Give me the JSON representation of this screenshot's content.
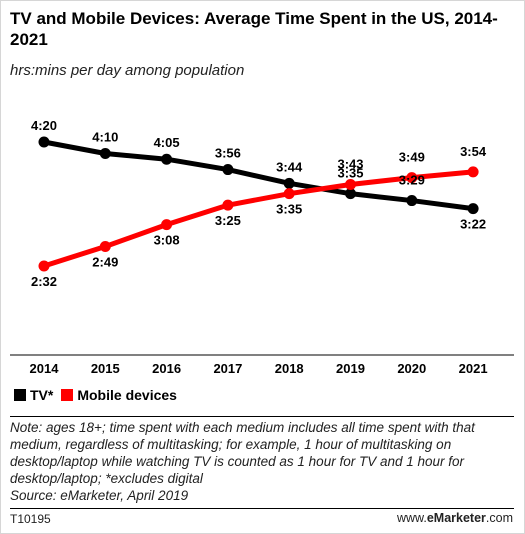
{
  "title": "TV and Mobile Devices: Average Time Spent in the US, 2014-2021",
  "subtitle": "hrs:mins per day among population",
  "note": "Note: ages 18+; time spent with each medium includes all time spent with that medium, regardless of multitasking; for example, 1 hour of multitasking on desktop/laptop while watching TV is counted as 1 hour for TV and 1 hour for desktop/laptop; *excludes digital",
  "source": "Source: eMarketer, April 2019",
  "chart_code": "T10195",
  "site": {
    "prefix": "www.",
    "brand": "eMarketer",
    "suffix": ".com"
  },
  "colors": {
    "tv": "#000000",
    "mobile": "#ff0000"
  },
  "chart_data": {
    "type": "line",
    "title": "TV and Mobile Devices: Average Time Spent in the US, 2014-2021",
    "subtitle": "hrs:mins per day among population",
    "x": [
      "2014",
      "2015",
      "2016",
      "2017",
      "2018",
      "2019",
      "2020",
      "2021"
    ],
    "ylim_minutes": [
      140,
      270
    ],
    "grid": false,
    "legend_position": "bottom-left",
    "series": [
      {
        "name": "TV*",
        "color": "#000000",
        "values_minutes": [
          260,
          250,
          245,
          236,
          224,
          215,
          209,
          202
        ],
        "labels": [
          "4:20",
          "4:10",
          "4:05",
          "3:56",
          "3:44",
          "3:35",
          "3:29",
          "3:22"
        ]
      },
      {
        "name": "Mobile devices",
        "color": "#ff0000",
        "values_minutes": [
          152,
          169,
          188,
          205,
          215,
          223,
          229,
          234
        ],
        "labels": [
          "2:32",
          "2:49",
          "3:08",
          "3:25",
          "3:35",
          "3:43",
          "3:49",
          "3:54"
        ]
      }
    ]
  }
}
